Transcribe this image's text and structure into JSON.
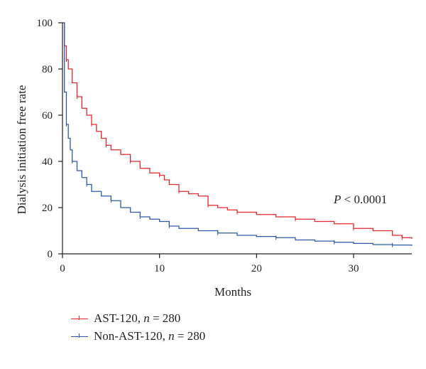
{
  "chart_data": {
    "type": "line",
    "subtype": "kaplan-meier step curve",
    "xlabel": "Months",
    "ylabel": "Dialysis initiation free rate",
    "xlim": [
      0,
      36
    ],
    "ylim": [
      0,
      100
    ],
    "x_ticks": [
      0,
      10,
      20,
      30
    ],
    "y_ticks": [
      0,
      20,
      40,
      60,
      80,
      100
    ],
    "grid": false,
    "legend_position": "bottom-left",
    "annotation": "P < 0.0001",
    "series": [
      {
        "name": "AST-120, n = 280",
        "color": "#e8262b",
        "x": [
          0,
          0.2,
          0.4,
          0.6,
          1,
          1.5,
          2,
          2.5,
          3,
          3.5,
          4,
          4.5,
          5,
          6,
          7,
          8,
          9,
          10,
          10.5,
          11,
          12,
          13,
          14,
          15,
          16,
          17,
          18,
          20,
          22,
          24,
          26,
          28,
          30,
          32,
          34,
          35,
          36
        ],
        "y": [
          100,
          90,
          84,
          80,
          74,
          68,
          63,
          60,
          56,
          53,
          50,
          47,
          45,
          43,
          40,
          37,
          35,
          34,
          32,
          30,
          27,
          26,
          25,
          21,
          20,
          19,
          18,
          17,
          16,
          15,
          14,
          13,
          11,
          10,
          8,
          7,
          6.5
        ]
      },
      {
        "name": "Non-AST-120, n = 280",
        "color": "#2d5aa8",
        "x": [
          0,
          0.2,
          0.4,
          0.6,
          0.8,
          1,
          1.5,
          2,
          2.5,
          3,
          4,
          5,
          6,
          7,
          8,
          9,
          10,
          11,
          12,
          14,
          16,
          18,
          20,
          22,
          24,
          26,
          28,
          30,
          32,
          34,
          36
        ],
        "y": [
          100,
          70,
          56,
          50,
          45,
          40,
          36,
          33,
          30,
          27,
          25,
          23,
          20,
          18,
          16,
          15,
          14,
          12,
          11,
          10,
          9,
          8,
          7.5,
          7,
          6,
          5.5,
          5,
          4.5,
          4,
          3.8,
          3.5
        ]
      }
    ]
  }
}
